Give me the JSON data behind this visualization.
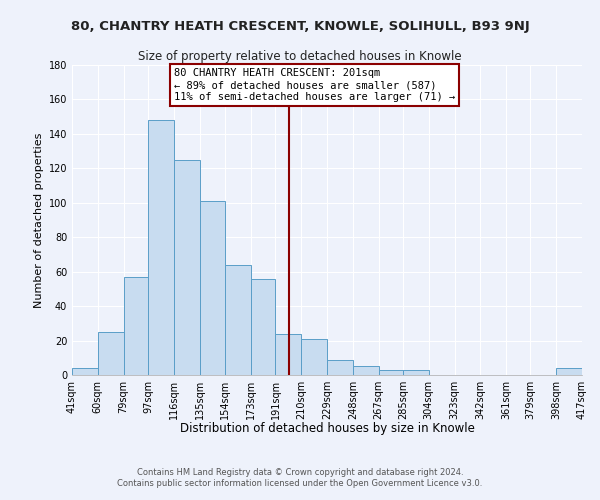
{
  "title": "80, CHANTRY HEATH CRESCENT, KNOWLE, SOLIHULL, B93 9NJ",
  "subtitle": "Size of property relative to detached houses in Knowle",
  "xlabel": "Distribution of detached houses by size in Knowle",
  "ylabel": "Number of detached properties",
  "bin_edges": [
    41,
    60,
    79,
    97,
    116,
    135,
    154,
    173,
    191,
    210,
    229,
    248,
    267,
    285,
    304,
    323,
    342,
    361,
    379,
    398,
    417
  ],
  "bin_labels": [
    "41sqm",
    "60sqm",
    "79sqm",
    "97sqm",
    "116sqm",
    "135sqm",
    "154sqm",
    "173sqm",
    "191sqm",
    "210sqm",
    "229sqm",
    "248sqm",
    "267sqm",
    "285sqm",
    "304sqm",
    "323sqm",
    "342sqm",
    "361sqm",
    "379sqm",
    "398sqm",
    "417sqm"
  ],
  "counts": [
    4,
    25,
    57,
    148,
    125,
    101,
    64,
    56,
    24,
    21,
    9,
    5,
    3,
    3,
    0,
    0,
    0,
    0,
    0,
    4
  ],
  "bar_color": "#c8dcf0",
  "bar_edge_color": "#5a9ec8",
  "vline_x": 201,
  "vline_color": "#8b0000",
  "annotation_text": "80 CHANTRY HEATH CRESCENT: 201sqm\n← 89% of detached houses are smaller (587)\n11% of semi-detached houses are larger (71) →",
  "annotation_box_color": "#ffffff",
  "annotation_box_edge": "#8b0000",
  "ylim": [
    0,
    180
  ],
  "yticks": [
    0,
    20,
    40,
    60,
    80,
    100,
    120,
    140,
    160,
    180
  ],
  "footer_line1": "Contains HM Land Registry data © Crown copyright and database right 2024.",
  "footer_line2": "Contains public sector information licensed under the Open Government Licence v3.0.",
  "background_color": "#eef2fb",
  "grid_color": "#ffffff",
  "title_fontsize": 9.5,
  "subtitle_fontsize": 8.5,
  "xlabel_fontsize": 8.5,
  "ylabel_fontsize": 8,
  "tick_fontsize": 7,
  "footer_fontsize": 6,
  "annot_fontsize": 7.5
}
